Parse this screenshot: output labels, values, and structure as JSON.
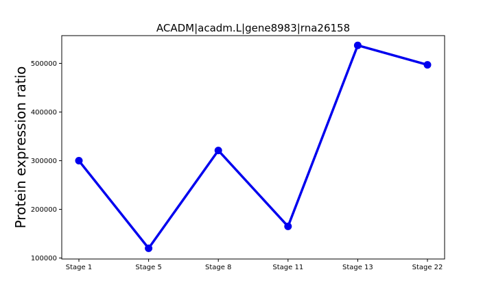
{
  "chart_data": {
    "type": "line",
    "title": "ACADM|acadm.L|gene8983|rna26158",
    "xlabel": "",
    "ylabel": "Protein expression ratio",
    "categories": [
      "Stage 1",
      "Stage 5",
      "Stage 8",
      "Stage 11",
      "Stage 13",
      "Stage 22"
    ],
    "series": [
      {
        "values": [
          300000,
          120000,
          321000,
          165000,
          537000,
          497000
        ],
        "color": "#0000ee"
      }
    ],
    "yticks": [
      100000,
      200000,
      300000,
      400000,
      500000
    ],
    "ytick_labels": [
      "100000",
      "200000",
      "300000",
      "400000",
      "500000"
    ],
    "ylim": [
      98000,
      557000
    ],
    "grid": false,
    "legend": "none"
  }
}
